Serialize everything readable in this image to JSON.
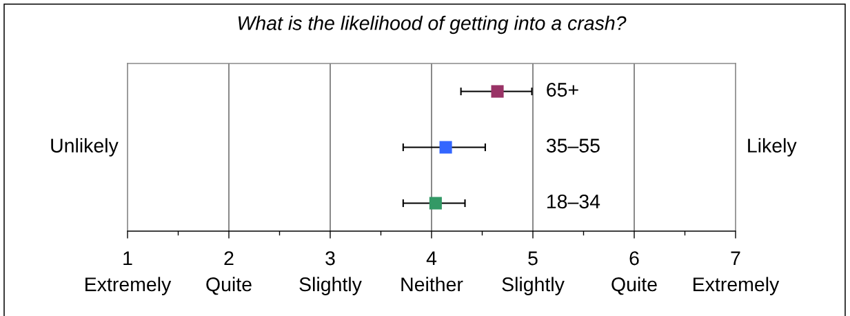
{
  "chart_data": {
    "type": "scatter",
    "title": "What is the likelihood of getting into a crash?",
    "orientation": "horizontal",
    "categories": [
      "65+",
      "35–55",
      "18–34"
    ],
    "values": [
      4.65,
      4.14,
      4.04
    ],
    "colors": [
      "#993366",
      "#3366ff",
      "#339966"
    ],
    "errors": [
      [
        4.29,
        4.99
      ],
      [
        3.72,
        4.53
      ],
      [
        3.72,
        4.33
      ]
    ],
    "xlim": [
      1,
      7
    ],
    "xticks": [
      {
        "value": 1,
        "label": "1\nExtremely"
      },
      {
        "value": 1.5,
        "label": null
      },
      {
        "value": 2,
        "label": "2\nQuite"
      },
      {
        "value": 2.5,
        "label": null
      },
      {
        "value": 3,
        "label": "3\nSlightly"
      },
      {
        "value": 3.5,
        "label": null
      },
      {
        "value": 4,
        "label": "4\nNeither"
      },
      {
        "value": 4.5,
        "label": null
      },
      {
        "value": 5,
        "label": "5\nSlightly"
      },
      {
        "value": 5.5,
        "label": null
      },
      {
        "value": 6,
        "label": "6\nQuite"
      },
      {
        "value": 6.5,
        "label": null
      },
      {
        "value": 7,
        "label": "7\nExtremely"
      }
    ],
    "grid": "x",
    "marker": "square",
    "annotations": [
      "Unlikely",
      "Likely"
    ]
  }
}
